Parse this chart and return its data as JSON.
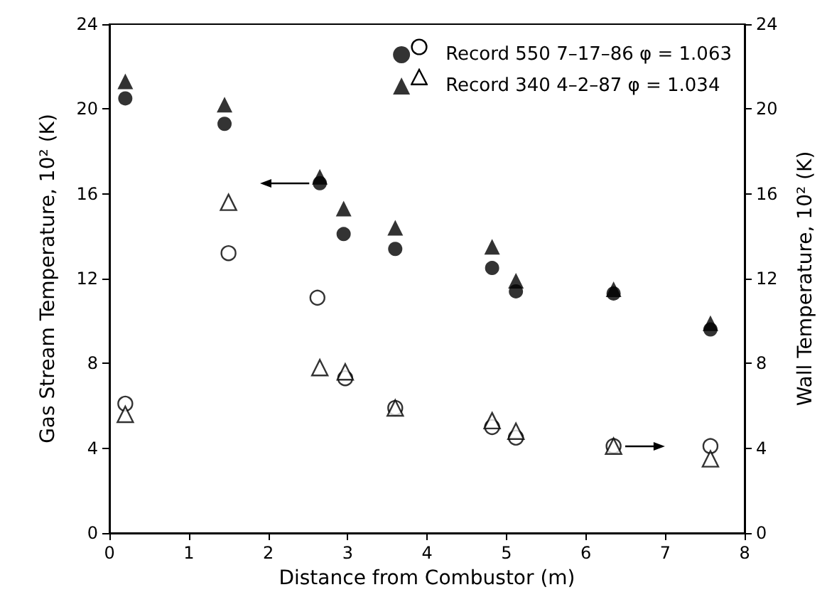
{
  "chart_data": {
    "type": "scatter",
    "xlabel": "Distance from Combustor (m)",
    "ylabel": "Gas Stream Temperature, 10² (K)",
    "y2label": "Wall Temperature, 10² (K)",
    "xlim": [
      0,
      8
    ],
    "xticks": [
      0,
      1,
      2,
      3,
      4,
      5,
      6,
      7,
      8
    ],
    "ylim": [
      0,
      24
    ],
    "yticks": [
      0,
      4,
      8,
      12,
      16,
      20,
      24
    ],
    "y2lim": [
      0,
      24
    ],
    "y2ticks": [
      0,
      4,
      8,
      12,
      16,
      20,
      24
    ],
    "grid": false,
    "legend": "top right",
    "series": [
      {
        "name": "Record 550 7–17–86 φ = 1.063",
        "color": "#000000",
        "marker": "circle",
        "x": [
          0.2,
          1.45,
          2.65,
          2.95,
          3.6,
          4.82,
          5.12,
          6.35,
          7.57
        ],
        "values": [
          20.5,
          19.3,
          16.5,
          14.1,
          13.4,
          12.5,
          11.4,
          11.3,
          9.6
        ]
      },
      {
        "name": "Record 340 4–2–87 φ = 1.034",
        "color": "#000000",
        "marker": "triangle",
        "x": [
          0.2,
          1.45,
          2.65,
          2.95,
          3.6,
          4.82,
          5.12,
          6.35,
          7.57
        ],
        "values": [
          21.3,
          20.2,
          16.8,
          15.3,
          14.4,
          13.5,
          11.9,
          11.5,
          9.9
        ]
      },
      {
        "color": "#000000",
        "marker": "circle",
        "axis": "y2",
        "x": [
          0.2,
          1.5,
          2.62,
          2.97,
          3.6,
          4.82,
          5.12,
          6.35,
          7.57
        ],
        "values": [
          6.1,
          13.2,
          11.1,
          7.3,
          5.9,
          5.0,
          4.5,
          4.1,
          4.1
        ]
      },
      {
        "color": "#000000",
        "marker": "triangle",
        "axis": "y2",
        "x": [
          0.2,
          1.5,
          2.65,
          2.97,
          3.6,
          4.82,
          5.12,
          6.35,
          7.57
        ],
        "values": [
          5.6,
          15.6,
          7.8,
          7.6,
          5.9,
          5.3,
          4.8,
          4.1,
          3.5
        ]
      }
    ]
  }
}
